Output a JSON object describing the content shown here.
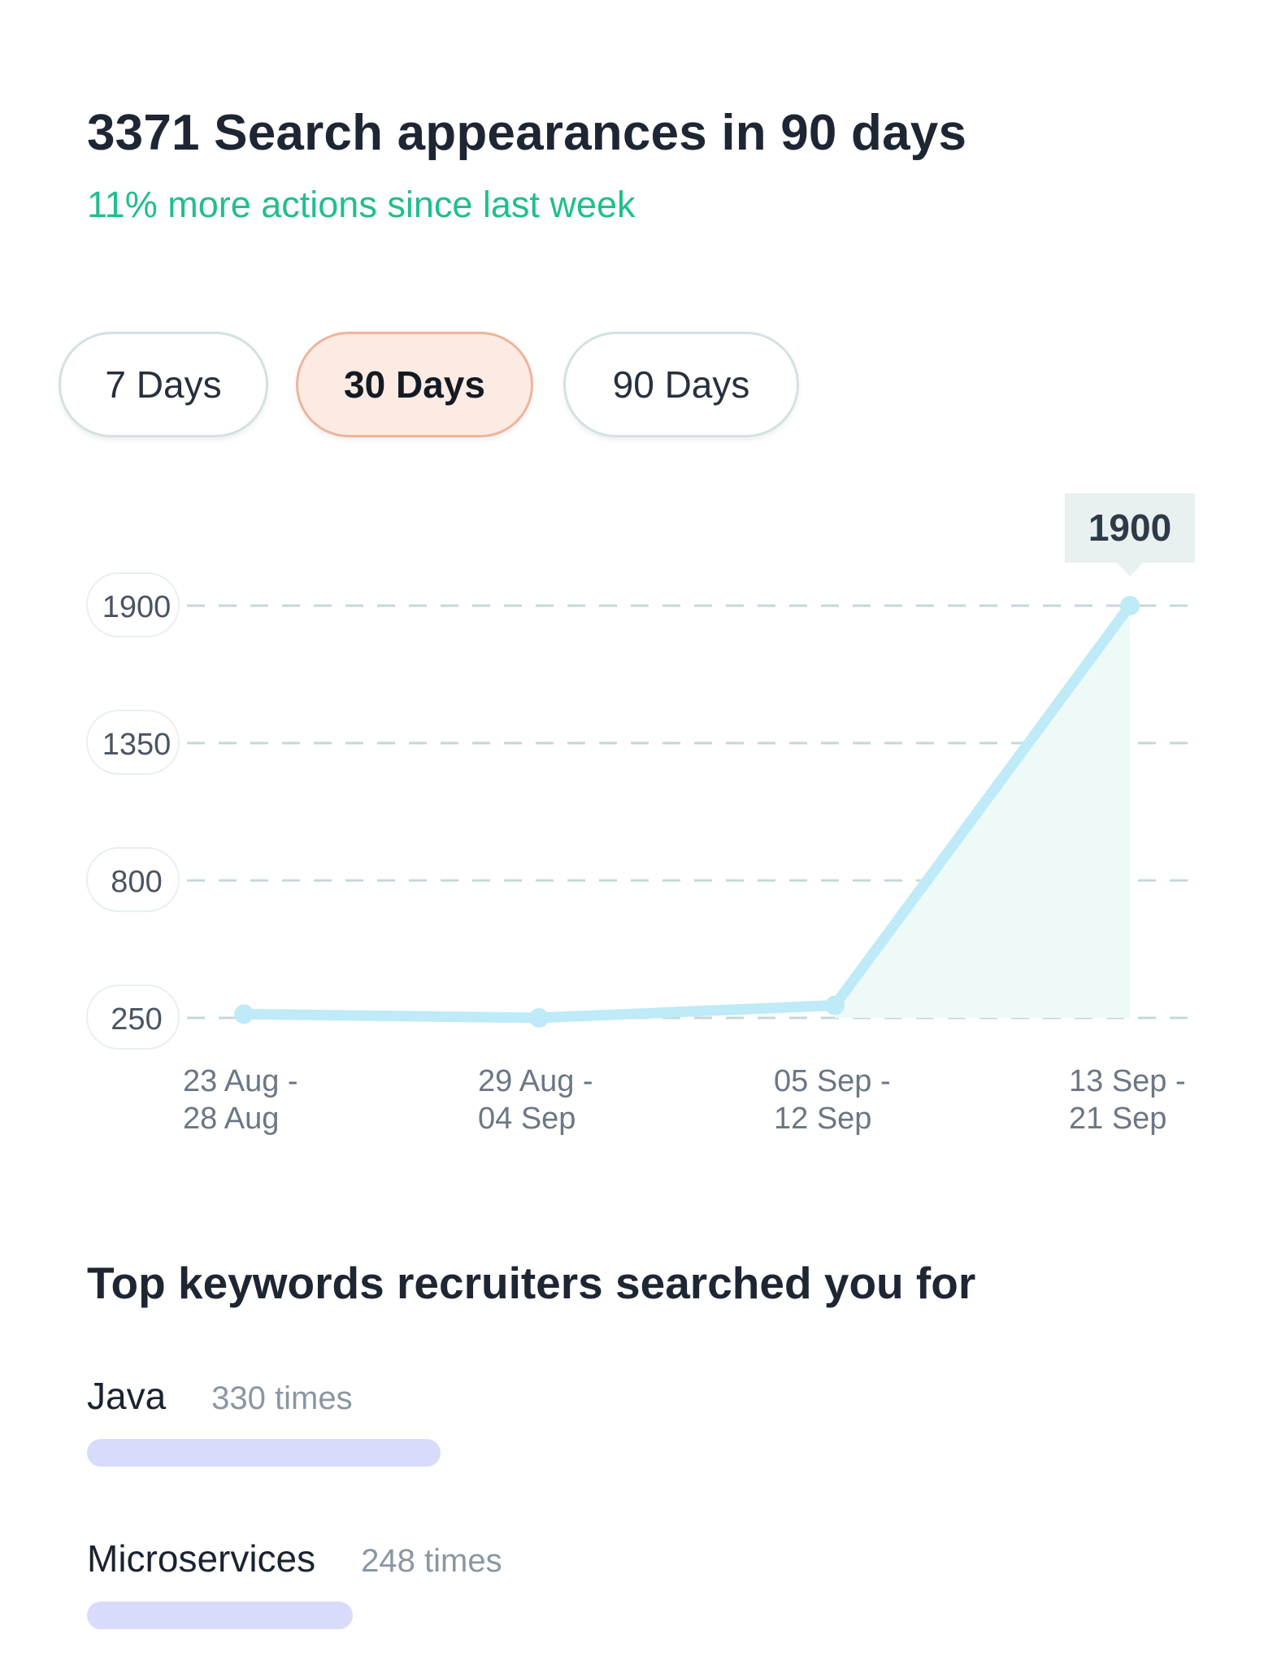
{
  "header": {
    "title": "3371 Search appearances in 90 days",
    "subtitle": "11% more actions since last week"
  },
  "range_tabs": [
    {
      "label": "7 Days",
      "selected": false
    },
    {
      "label": "30 Days",
      "selected": true
    },
    {
      "label": "90 Days",
      "selected": false
    }
  ],
  "colors": {
    "accent_green": "#1fbf8f",
    "line": "#bfeaf7",
    "area_fill": "#eefaf8",
    "active_tab_bg": "#fcebe3",
    "active_tab_border": "#f0b39a",
    "keyword_bar": "#d8dcfa"
  },
  "chart_data": {
    "type": "line",
    "x": [
      "23 Aug - 28 Aug",
      "29 Aug - 04 Sep",
      "05 Sep - 12 Sep",
      "13 Sep - 21 Sep"
    ],
    "x_tick_labels": [
      [
        "23 Aug -",
        "28 Aug"
      ],
      [
        "29 Aug -",
        "04 Sep"
      ],
      [
        "05 Sep -",
        "12 Sep"
      ],
      [
        "13 Sep -",
        "21 Sep"
      ]
    ],
    "series": [
      {
        "values": [
          265,
          250,
          300,
          1900
        ]
      }
    ],
    "y_ticks": [
      1900,
      1350,
      800,
      250
    ],
    "y_tick_labels": [
      "1900",
      "1350",
      "800",
      "250"
    ],
    "ylim": [
      250,
      1900
    ],
    "grid": "dashed horizontal",
    "highlight": {
      "index": 3,
      "label": "1900"
    },
    "area_fill_under_last_segment": true
  },
  "keywords": {
    "title": "Top keywords recruiters searched you for",
    "items": [
      {
        "name": "Java",
        "count_label": "330 times",
        "count": 330
      },
      {
        "name": "Microservices",
        "count_label": "248 times",
        "count": 248
      }
    ]
  }
}
